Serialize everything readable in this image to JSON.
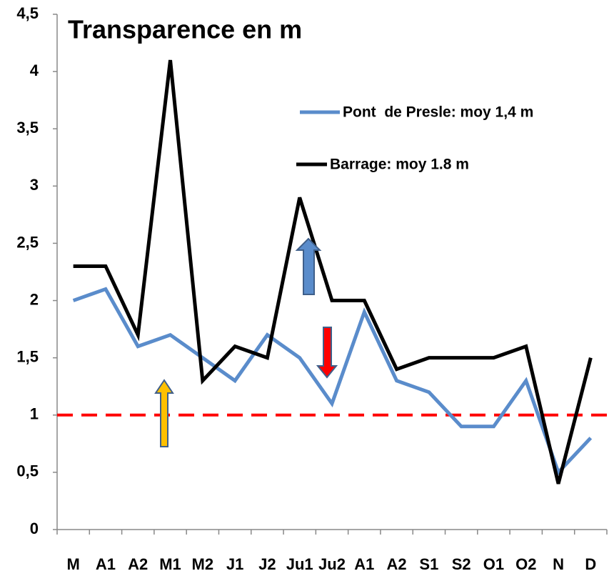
{
  "chart_data": {
    "type": "line",
    "title": "Transparence en m",
    "categories": [
      "M",
      "A1",
      "A2",
      "M1",
      "M2",
      "J1",
      "J2",
      "Ju1",
      "Ju2",
      "A1",
      "A2",
      "S1",
      "S2",
      "O1",
      "O2",
      "N",
      "D"
    ],
    "series": [
      {
        "name": "Pont  de Presle: moy 1,4 m",
        "color": "#5a8ccb",
        "values": [
          2.0,
          2.1,
          1.6,
          1.7,
          1.5,
          1.3,
          1.7,
          1.5,
          1.1,
          1.9,
          1.3,
          1.2,
          0.9,
          0.9,
          1.3,
          0.5,
          0.8
        ]
      },
      {
        "name": "Barrage: moy 1.8 m",
        "color": "#000000",
        "values": [
          2.3,
          2.3,
          1.7,
          4.1,
          1.3,
          1.6,
          1.5,
          2.9,
          2.0,
          2.0,
          1.4,
          1.5,
          1.5,
          1.5,
          1.6,
          0.4,
          1.5
        ]
      }
    ],
    "ylim": [
      0,
      4.5
    ],
    "yticks": [
      0,
      {
        "value": 0.5,
        "label": "0,5"
      },
      1,
      {
        "value": 1.5,
        "label": "1,5"
      },
      2,
      {
        "value": 2.5,
        "label": "2,5"
      },
      3,
      {
        "value": 3.5,
        "label": "3,5"
      },
      4,
      {
        "value": 4.5,
        "label": "4,5"
      }
    ],
    "reference_line": {
      "value": 1,
      "color": "#ff0000"
    },
    "grid": false
  }
}
